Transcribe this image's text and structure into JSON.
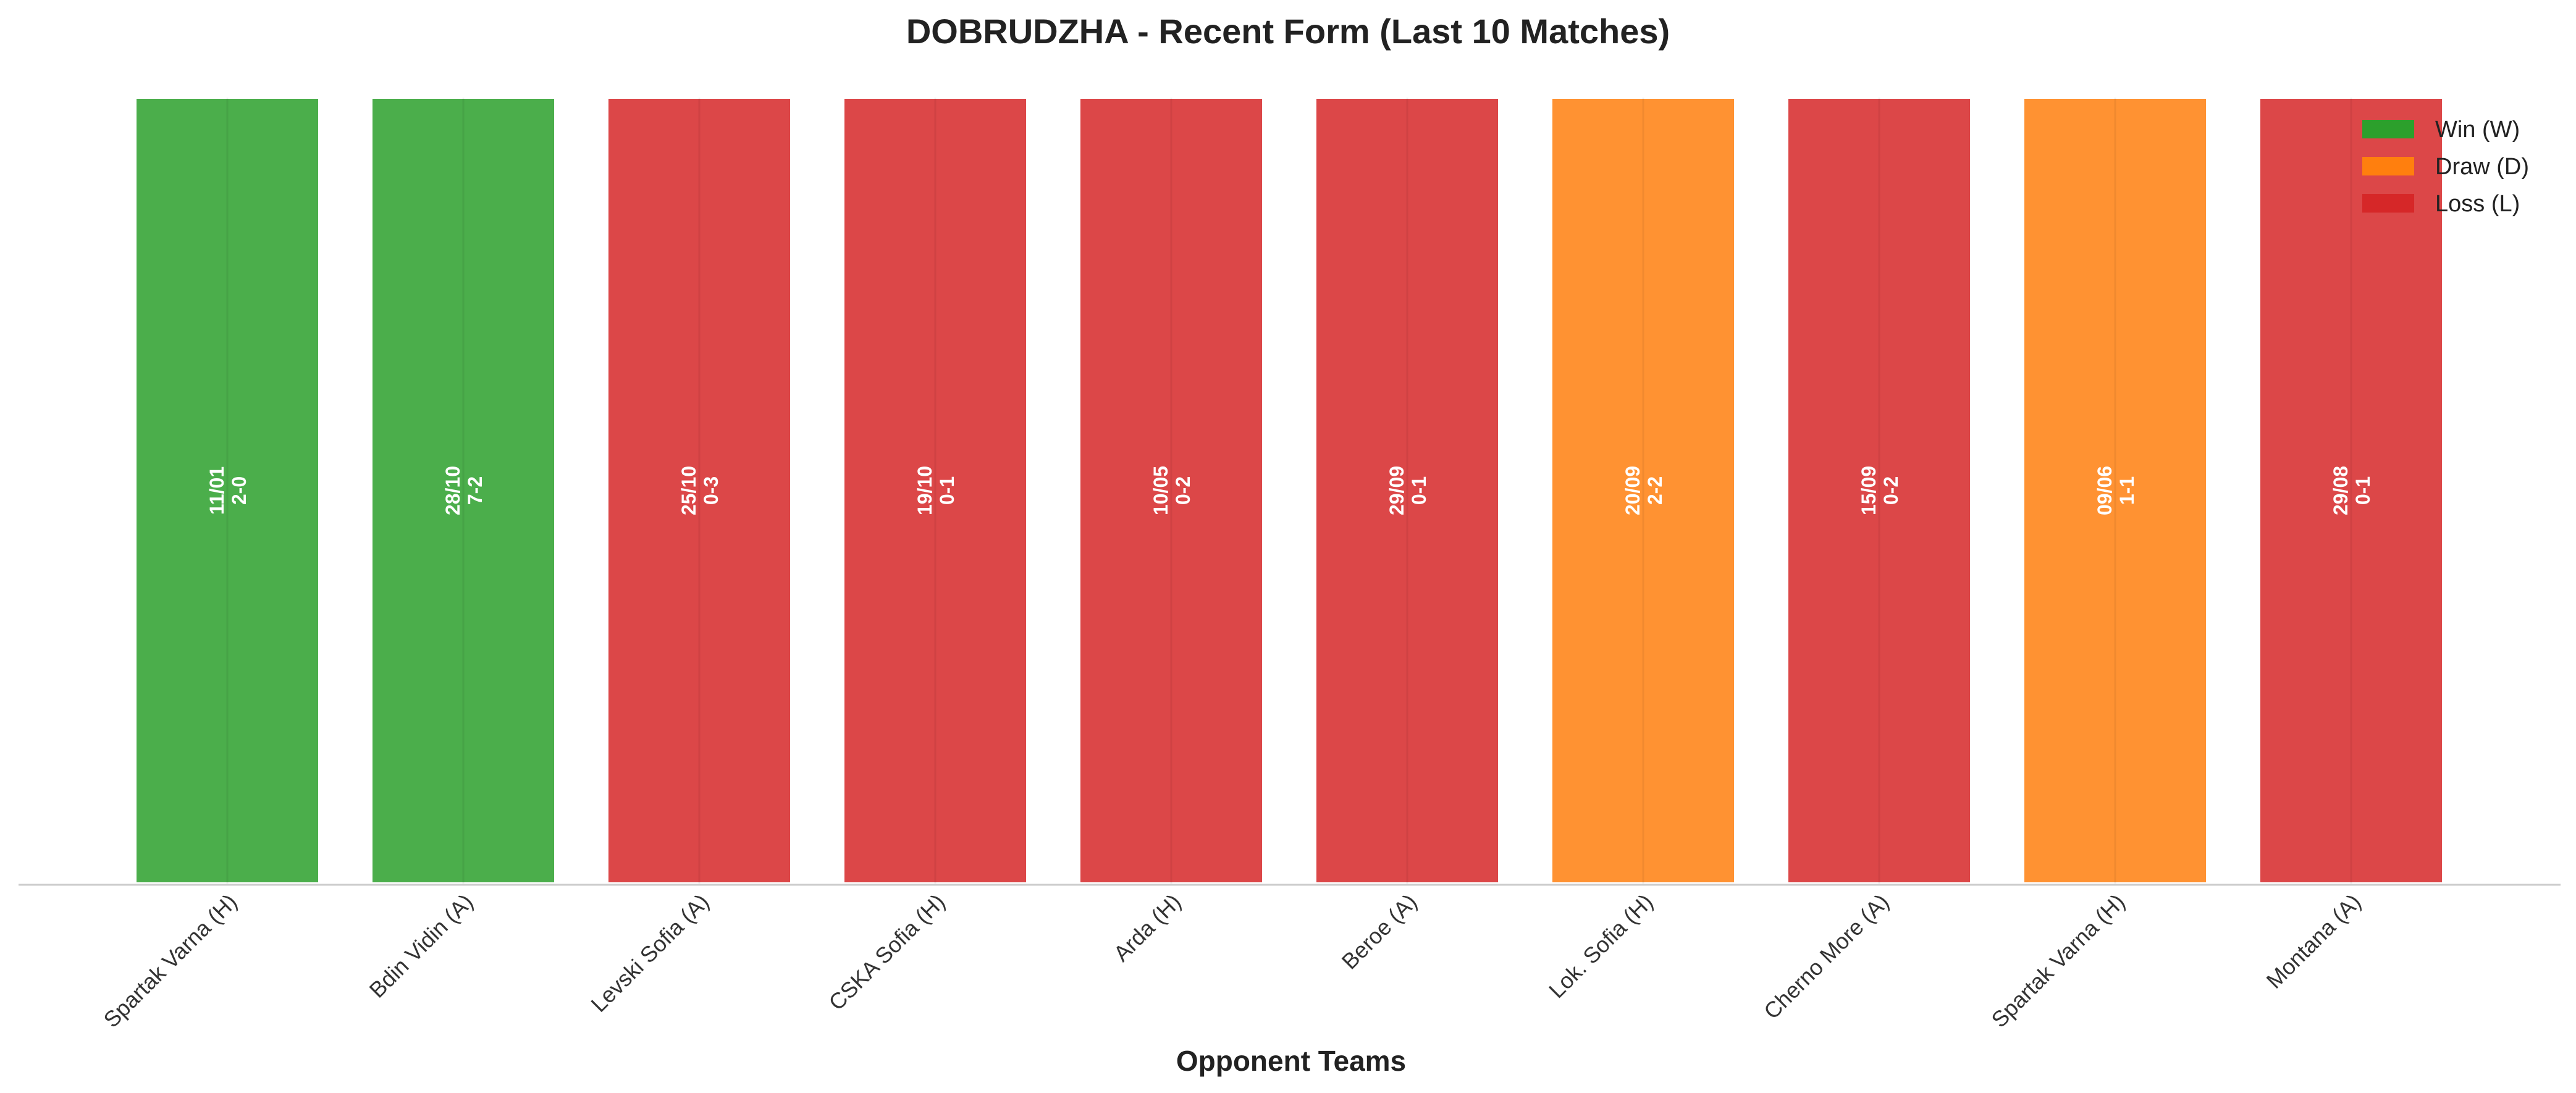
{
  "chart_data": {
    "type": "bar",
    "title": "DOBRUDZHA - Recent Form (Last 10 Matches)",
    "xlabel": "Opponent Teams",
    "ylabel": "",
    "ylim": [
      0,
      1
    ],
    "grid": false,
    "legend_position": "top-right",
    "categories": [
      "Spartak Varna (H)",
      "Bdin Vidin (A)",
      "Levski Sofia (A)",
      "CSKA Sofia (H)",
      "Arda (H)",
      "Beroe (A)",
      "Lok. Sofia (H)",
      "Cherno More (A)",
      "Spartak Varna (H)",
      "Montana (A)"
    ],
    "values": [
      1,
      1,
      1,
      1,
      1,
      1,
      1,
      1,
      1,
      1
    ],
    "results": [
      "W",
      "W",
      "L",
      "L",
      "L",
      "L",
      "D",
      "L",
      "D",
      "L"
    ],
    "dates": [
      "11/01",
      "28/10",
      "25/10",
      "19/10",
      "10/05",
      "29/09",
      "20/09",
      "15/09",
      "09/06",
      "29/08"
    ],
    "scores": [
      "2-0",
      "7-2",
      "0-3",
      "0-1",
      "0-2",
      "0-1",
      "2-2",
      "0-2",
      "1-1",
      "0-1"
    ],
    "legend": [
      {
        "key": "W",
        "label": "Win (W)",
        "color": "#2ca02c"
      },
      {
        "key": "D",
        "label": "Draw (D)",
        "color": "#ff7f0e"
      },
      {
        "key": "L",
        "label": "Loss (L)",
        "color": "#d62728"
      }
    ]
  }
}
